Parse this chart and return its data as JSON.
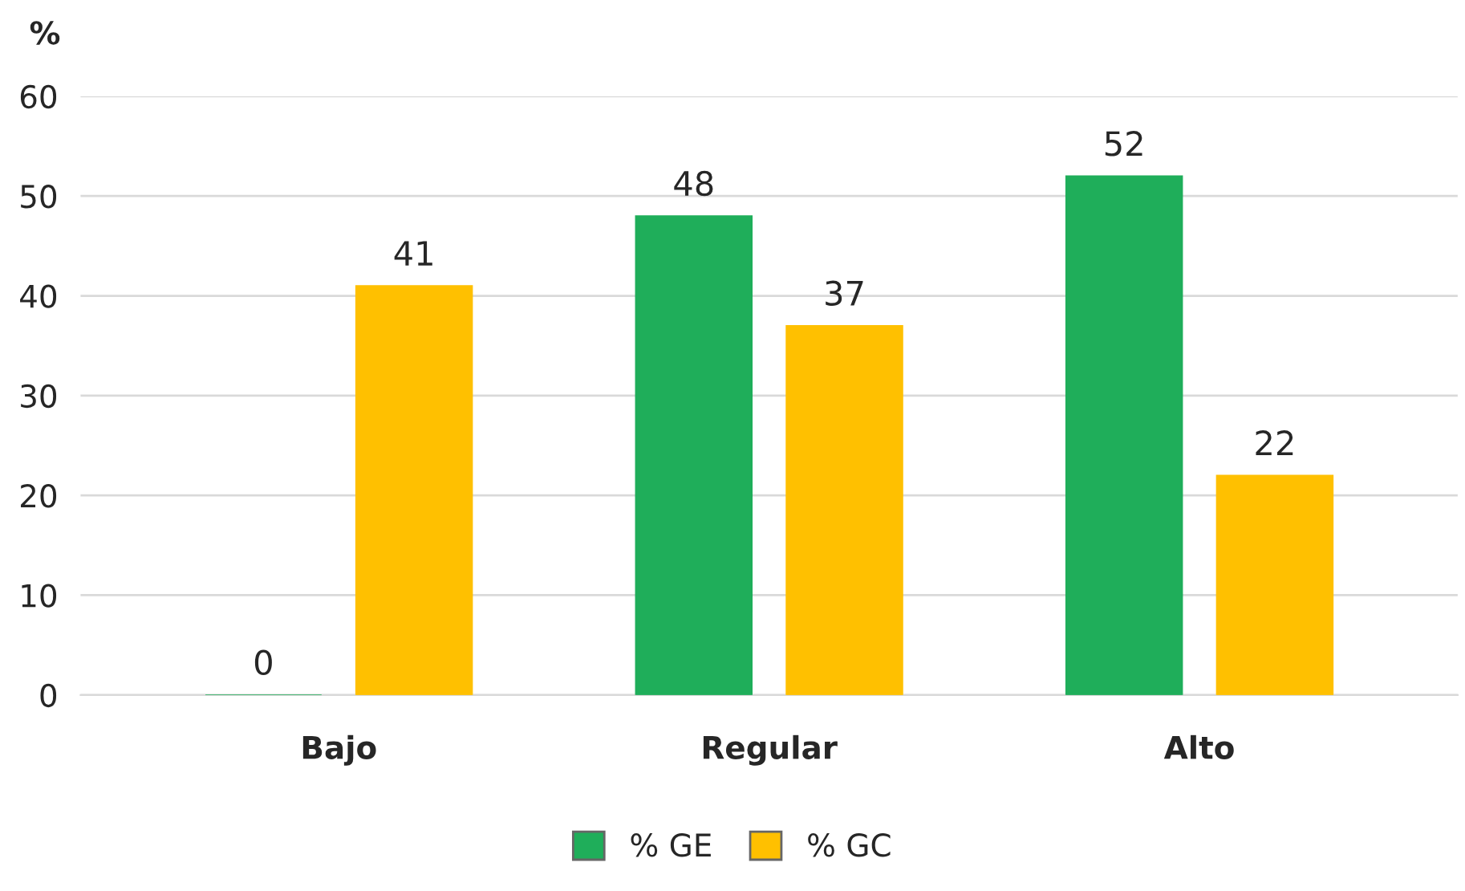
{
  "chart_data": {
    "type": "bar",
    "ylabel": "%",
    "categories": [
      "Bajo",
      "Regular",
      "Alto"
    ],
    "series": [
      {
        "name": "% GE",
        "color": "#1fae5a",
        "values": [
          0,
          48,
          52
        ]
      },
      {
        "name": "% GC",
        "color": "#ffc000",
        "values": [
          41,
          37,
          22
        ]
      }
    ],
    "ylim": [
      0,
      60
    ],
    "yticks": [
      0,
      10,
      20,
      30,
      40,
      50,
      60
    ],
    "grid": "y",
    "legend": "bottom",
    "data_labels": true
  }
}
